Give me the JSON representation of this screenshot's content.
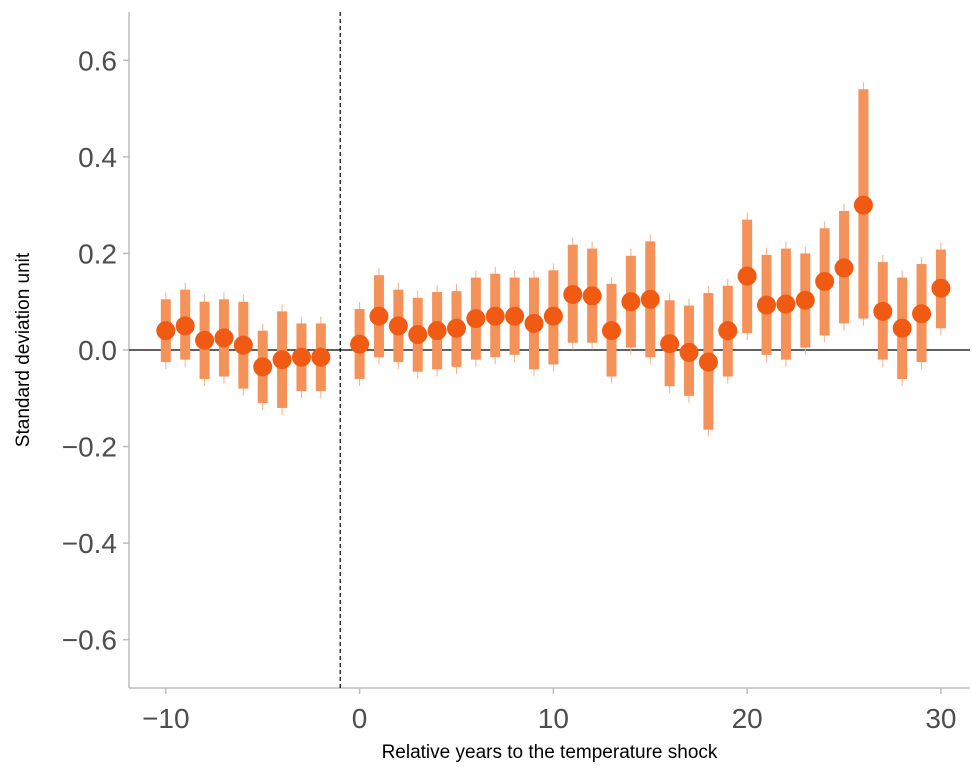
{
  "chart_data": {
    "type": "scatter",
    "xlabel": "Relative years to the temperature shock",
    "ylabel": "Standard deviation unit",
    "xlim": [
      -11.9,
      31.5
    ],
    "ylim": [
      -0.7,
      0.7
    ],
    "x_ticks": [
      -10,
      0,
      10,
      20,
      30
    ],
    "x_tick_labels": [
      "−10",
      "0",
      "10",
      "20",
      "30"
    ],
    "y_ticks": [
      -0.6,
      -0.4,
      -0.2,
      0.0,
      0.2,
      0.4,
      0.6
    ],
    "y_tick_labels": [
      "−0.6",
      "−0.4",
      "−0.2",
      "0.0",
      "0.2",
      "0.4",
      "0.6"
    ],
    "reference_hline_y": 0,
    "reference_vline_x": -1,
    "grid": false,
    "legend": "none",
    "colors": {
      "point": "#f05a12",
      "ci_bar": "#f4925a",
      "ci_whisker": "#f4b08a"
    },
    "series": [
      {
        "x": [
          -10,
          -9,
          -8,
          -7,
          -6,
          -5,
          -4,
          -3,
          -2,
          0,
          1,
          2,
          3,
          4,
          5,
          6,
          7,
          8,
          9,
          10,
          11,
          12,
          13,
          14,
          15,
          16,
          17,
          18,
          19,
          20,
          21,
          22,
          23,
          24,
          25,
          26,
          27,
          28,
          29,
          30
        ],
        "y": [
          0.04,
          0.05,
          0.02,
          0.025,
          0.01,
          -0.035,
          -0.02,
          -0.015,
          -0.015,
          0.012,
          0.07,
          0.05,
          0.032,
          0.04,
          0.045,
          0.065,
          0.07,
          0.07,
          0.055,
          0.07,
          0.115,
          0.112,
          0.04,
          0.1,
          0.105,
          0.013,
          -0.005,
          -0.025,
          0.04,
          0.153,
          0.093,
          0.095,
          0.103,
          0.142,
          0.17,
          0.3,
          0.08,
          0.045,
          0.075,
          0.128
        ],
        "lower": [
          -0.025,
          -0.02,
          -0.06,
          -0.055,
          -0.08,
          -0.11,
          -0.12,
          -0.085,
          -0.085,
          -0.06,
          -0.015,
          -0.025,
          -0.045,
          -0.04,
          -0.035,
          -0.02,
          -0.015,
          -0.01,
          -0.04,
          -0.03,
          0.015,
          0.015,
          -0.055,
          0.005,
          -0.015,
          -0.075,
          -0.095,
          -0.165,
          -0.055,
          0.035,
          -0.01,
          -0.02,
          0.005,
          0.03,
          0.055,
          0.065,
          -0.02,
          -0.06,
          -0.025,
          0.045
        ],
        "upper": [
          0.105,
          0.125,
          0.1,
          0.105,
          0.1,
          0.04,
          0.08,
          0.055,
          0.055,
          0.085,
          0.155,
          0.125,
          0.108,
          0.12,
          0.122,
          0.15,
          0.158,
          0.15,
          0.15,
          0.165,
          0.218,
          0.21,
          0.137,
          0.195,
          0.225,
          0.103,
          0.092,
          0.118,
          0.133,
          0.27,
          0.197,
          0.21,
          0.2,
          0.252,
          0.288,
          0.54,
          0.182,
          0.15,
          0.178,
          0.208
        ]
      }
    ]
  }
}
